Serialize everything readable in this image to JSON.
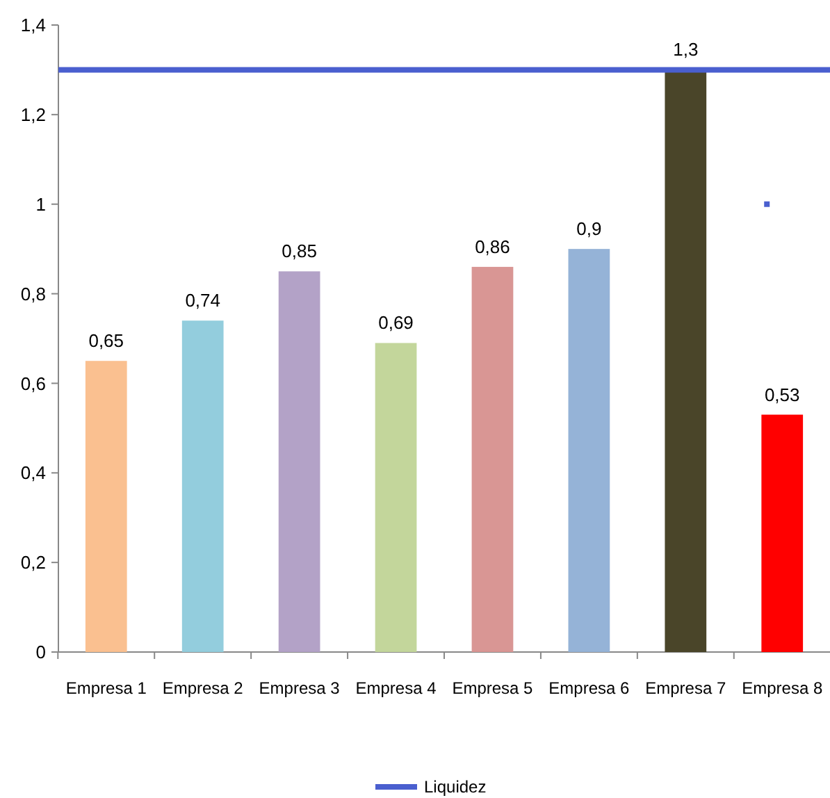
{
  "chart_data": {
    "type": "bar",
    "categories": [
      "Empresa 1",
      "Empresa 2",
      "Empresa 3",
      "Empresa 4",
      "Empresa 5",
      "Empresa 6",
      "Empresa 7",
      "Empresa 8"
    ],
    "series": [
      {
        "values": [
          0.65,
          0.74,
          0.85,
          0.69,
          0.86,
          0.9,
          1.3,
          0.53
        ],
        "value_labels": [
          "0,65",
          "0,74",
          "0,85",
          "0,69",
          "0,86",
          "0,9",
          "1,3",
          "0,53"
        ],
        "colors": [
          "#fac090",
          "#93cddd",
          "#b3a2c7",
          "#c3d69b",
          "#d99694",
          "#95b3d7",
          "#4a4529",
          "#ff0000"
        ]
      },
      {
        "type": "scatter",
        "x": [
          "Empresa 8"
        ],
        "values": [
          1
        ],
        "color": "#4a5fcf",
        "marker": "square"
      }
    ],
    "ylim": [
      0,
      1.4
    ],
    "yticks": [
      0,
      {
        "value": 0.2,
        "label": "0,2"
      },
      {
        "value": 0.4,
        "label": "0,4"
      },
      {
        "value": 0.6,
        "label": "0,6"
      },
      {
        "value": 0.8,
        "label": "0,8"
      },
      1,
      {
        "value": 1.2,
        "label": "1,2"
      },
      {
        "value": 1.4,
        "label": "1,4"
      }
    ],
    "ref_lines": [
      {
        "axis": "y",
        "value": 1.3,
        "label": "Liquidez",
        "color": "#4a5fcf"
      }
    ],
    "legend": "bottom",
    "grid": false
  }
}
